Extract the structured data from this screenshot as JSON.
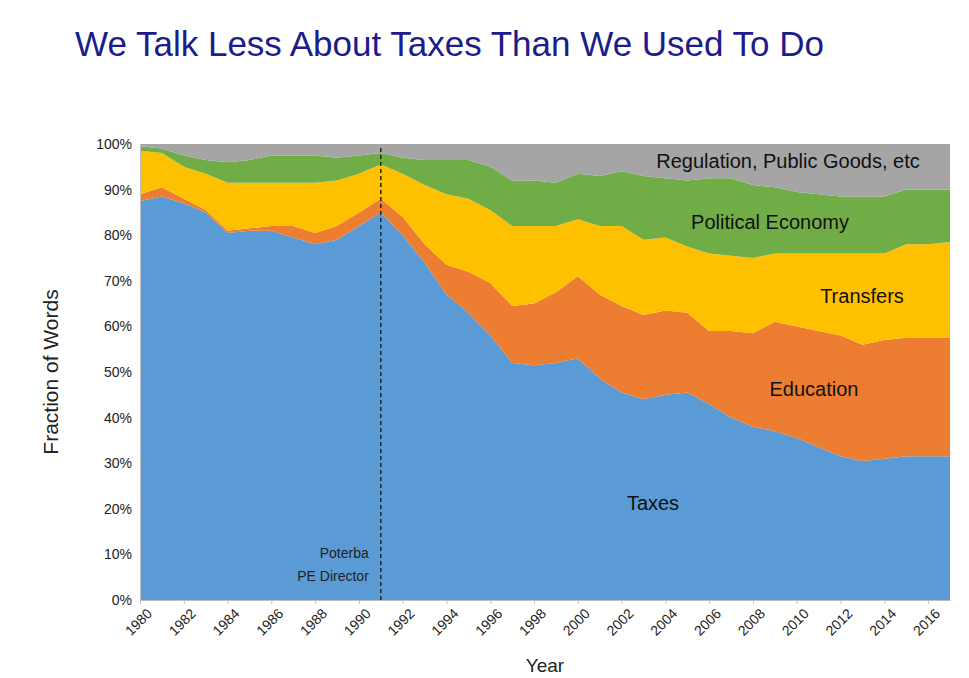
{
  "chart_data": {
    "type": "area",
    "stacked": true,
    "title": "We Talk Less About Taxes Than We Used To Do",
    "x_label": "Year",
    "y_label": "Fraction of Words",
    "x": [
      1980,
      1981,
      1982,
      1983,
      1984,
      1985,
      1986,
      1987,
      1988,
      1989,
      1990,
      1991,
      1992,
      1993,
      1994,
      1995,
      1996,
      1997,
      1998,
      1999,
      2000,
      2001,
      2002,
      2003,
      2004,
      2005,
      2006,
      2007,
      2008,
      2009,
      2010,
      2011,
      2012,
      2013,
      2014,
      2015,
      2016,
      2017
    ],
    "xlim": [
      1980,
      2017
    ],
    "xticks": [
      1980,
      1982,
      1984,
      1986,
      1988,
      1990,
      1992,
      1994,
      1996,
      1998,
      2000,
      2002,
      2004,
      2006,
      2008,
      2010,
      2012,
      2014,
      2016
    ],
    "ylim": [
      0,
      100
    ],
    "yticks": [
      {
        "value": 0,
        "label": "0%"
      },
      {
        "value": 10,
        "label": "10%"
      },
      {
        "value": 20,
        "label": "20%"
      },
      {
        "value": 30,
        "label": "30%"
      },
      {
        "value": 40,
        "label": "40%"
      },
      {
        "value": 50,
        "label": "50%"
      },
      {
        "value": 60,
        "label": "60%"
      },
      {
        "value": 70,
        "label": "70%"
      },
      {
        "value": 80,
        "label": "80%"
      },
      {
        "value": 90,
        "label": "90%"
      },
      {
        "value": 100,
        "label": "100%"
      }
    ],
    "grid": false,
    "series": [
      {
        "name": "Taxes",
        "color": "#5b9bd5",
        "values": [
          87.5,
          88.5,
          87,
          85,
          80.5,
          81,
          81,
          79.5,
          78,
          79,
          82,
          85,
          80,
          74,
          67,
          63,
          58,
          52,
          51.5,
          52,
          53,
          48.5,
          45.5,
          44,
          45,
          45.5,
          43,
          40,
          38,
          37,
          35.5,
          33.5,
          31.5,
          30.5,
          31,
          31.5,
          31.5,
          31.5
        ]
      },
      {
        "name": "Education",
        "color": "#ed7d31",
        "values": [
          1.5,
          2,
          1,
          0.5,
          0.5,
          0.5,
          1,
          2.5,
          2.5,
          3,
          3,
          3,
          4,
          4,
          6.5,
          9,
          11.5,
          12.5,
          13.5,
          15.5,
          18,
          18.5,
          19,
          18.5,
          18.5,
          17.5,
          16,
          19,
          20.5,
          24,
          24.5,
          25.5,
          26.5,
          25.5,
          26,
          26,
          26,
          26
        ]
      },
      {
        "name": "Transfers",
        "color": "#ffc000",
        "values": [
          9.5,
          7.5,
          7,
          8,
          10.5,
          10,
          9.5,
          9.5,
          11,
          10,
          8.5,
          7.5,
          9.5,
          13,
          15.5,
          16,
          16,
          17.5,
          17,
          14.5,
          12.5,
          15,
          17.5,
          16.5,
          16,
          14.5,
          17,
          16.5,
          16.5,
          15,
          16,
          17,
          18,
          20,
          19,
          20.5,
          20.5,
          21
        ]
      },
      {
        "name": "Political Economy",
        "color": "#70ad47",
        "values": [
          1,
          1,
          2.5,
          3,
          4.5,
          5,
          6,
          6,
          6,
          5,
          4,
          2.5,
          3.5,
          5.5,
          7.5,
          8.5,
          9.5,
          10,
          10,
          9.5,
          10,
          11,
          12,
          14,
          13,
          14.5,
          16.5,
          17,
          16,
          14.5,
          13.5,
          13,
          12.5,
          12.5,
          12.5,
          12,
          12,
          11.5
        ]
      },
      {
        "name": "Regulation, Public Goods, etc",
        "color": "#a5a5a5",
        "values": [
          0.5,
          1,
          2.5,
          3.5,
          4,
          3.5,
          2.5,
          2.5,
          2.5,
          3,
          2.5,
          2,
          3,
          3.5,
          3.5,
          3.5,
          5,
          8,
          8,
          8.5,
          6.5,
          7,
          6,
          7,
          7.5,
          8,
          7.5,
          7.5,
          9,
          9.5,
          10.5,
          11,
          11.5,
          11.5,
          11.5,
          10,
          10,
          10
        ]
      }
    ],
    "annotations": [
      {
        "lines": [
          "Poterba",
          "PE Director"
        ],
        "x": 1991
      }
    ]
  }
}
